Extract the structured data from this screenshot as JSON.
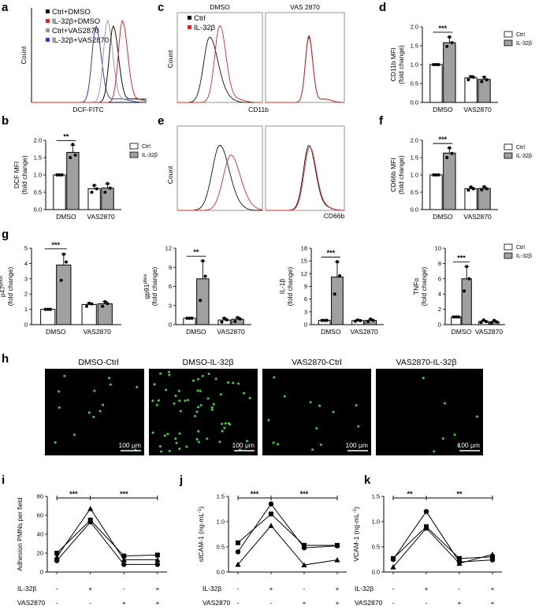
{
  "panels": {
    "a": "a",
    "b": "b",
    "c": "c",
    "d": "d",
    "e": "e",
    "f": "f",
    "g": "g",
    "h": "h",
    "i": "i",
    "j": "j",
    "k": "k"
  },
  "flow_a": {
    "xlabel": "DCF-FITC",
    "ylabel": "Count",
    "legend": [
      {
        "name": "Ctrl+DMSO",
        "color": "#111111"
      },
      {
        "name": "IL-32β+DMSO",
        "color": "#e02828"
      },
      {
        "name": "Ctrl+VAS2870",
        "color": "#9a9a9a"
      },
      {
        "name": "IL-32β+VAS2870",
        "color": "#2b3fc4"
      }
    ],
    "peaks": [
      {
        "name": "IL-32β+VAS2870",
        "center": 0.56,
        "color": "#2b3fc4"
      },
      {
        "name": "Ctrl+VAS2870",
        "center": 0.66,
        "color": "#9a9a9a"
      },
      {
        "name": "Ctrl+DMSO",
        "center": 0.71,
        "color": "#111111"
      },
      {
        "name": "IL-32β+DMSO",
        "center": 0.79,
        "color": "#e02828"
      }
    ]
  },
  "flow_c": {
    "titles": [
      "DMSO",
      "VAS 2870"
    ],
    "xlabel": "CD11b",
    "ylabel": "Count",
    "legend": [
      {
        "name": "Ctrl",
        "color": "#111111"
      },
      {
        "name": "IL-32β",
        "color": "#e02828"
      }
    ]
  },
  "flow_e": {
    "xlabel": "CD66b",
    "ylabel": "Count"
  },
  "micro_h": {
    "titles": [
      "DMSO-Ctrl",
      "DMSO-IL-32β",
      "VAS2870-Ctrl",
      "VAS2870-IL-32β"
    ],
    "scale_label": "100 μm",
    "cell_counts": [
      14,
      60,
      13,
      7
    ]
  },
  "x_axis_rows": {
    "il32_label": "IL-32β",
    "vas_label": "VAS2870",
    "il32_signs": [
      "-",
      "+",
      "-",
      "+"
    ],
    "vas_signs": [
      "-",
      "-",
      "+",
      "+"
    ]
  },
  "chart_data": [
    {
      "id": "d",
      "type": "bar",
      "categories": [
        "DMSO",
        "VAS2870"
      ],
      "series_names": [
        "Ctrl",
        "IL-32β"
      ],
      "values": [
        [
          1.0,
          1.58
        ],
        [
          0.65,
          0.61
        ]
      ],
      "errors": [
        [
          0.01,
          0.15
        ],
        [
          0.06,
          0.07
        ]
      ],
      "points": [
        [
          [
            1.0,
            1.0,
            1.0
          ],
          [
            1.48,
            1.73,
            1.58
          ]
        ],
        [
          [
            0.6,
            0.68,
            0.67
          ],
          [
            0.55,
            0.67,
            0.6
          ]
        ]
      ],
      "ylabel": [
        "CD11b MFI",
        "(fold change)"
      ],
      "ylim": [
        0,
        2
      ],
      "yticks": [
        "0.0",
        "0.5",
        "1.0",
        "1.5",
        "2.0"
      ],
      "sig": "***",
      "legend": true
    },
    {
      "id": "b",
      "type": "bar",
      "categories": [
        "DMSO",
        "VAS2870"
      ],
      "series_names": [
        "Ctrl",
        "IL-32β"
      ],
      "values": [
        [
          1.0,
          1.65
        ],
        [
          0.6,
          0.62
        ]
      ],
      "errors": [
        [
          0.01,
          0.2
        ],
        [
          0.1,
          0.12
        ]
      ],
      "points": [
        [
          [
            1.0,
            1.0,
            1.0
          ],
          [
            1.5,
            1.88,
            1.57
          ]
        ],
        [
          [
            0.5,
            0.7,
            0.6
          ],
          [
            0.5,
            0.75,
            0.62
          ]
        ]
      ],
      "ylabel": [
        "DCF MFI",
        "(fold change)"
      ],
      "ylim": [
        0,
        2
      ],
      "yticks": [
        "0.0",
        "0.5",
        "1.0",
        "1.5",
        "2.0"
      ],
      "sig": "**",
      "legend": true
    },
    {
      "id": "f",
      "type": "bar",
      "categories": [
        "DMSO",
        "VAS2870"
      ],
      "series_names": [
        "Ctrl",
        "IL-32β"
      ],
      "values": [
        [
          1.0,
          1.63
        ],
        [
          0.6,
          0.61
        ]
      ],
      "errors": [
        [
          0.01,
          0.14
        ],
        [
          0.05,
          0.05
        ]
      ],
      "points": [
        [
          [
            1.0,
            1.0,
            1.0
          ],
          [
            1.5,
            1.78,
            1.62
          ]
        ],
        [
          [
            0.56,
            0.65,
            0.6
          ],
          [
            0.57,
            0.66,
            0.6
          ]
        ]
      ],
      "ylabel": [
        "CD66b MFI",
        "(fold change)"
      ],
      "ylim": [
        0,
        2
      ],
      "yticks": [
        "0.0",
        "0.5",
        "1.0",
        "1.5",
        "2.0"
      ],
      "sig": "***",
      "legend": true
    },
    {
      "id": "g1",
      "type": "bar",
      "categories": [
        "DMSO",
        "VAS2870"
      ],
      "series_names": [
        "Ctrl",
        "IL-32β"
      ],
      "values": [
        [
          1.0,
          3.9
        ],
        [
          1.32,
          1.36
        ]
      ],
      "errors": [
        [
          0.03,
          0.75
        ],
        [
          0.1,
          0.15
        ]
      ],
      "points": [
        [
          [
            1.0,
            1.0,
            1.0
          ],
          [
            2.9,
            4.6,
            4.1
          ]
        ],
        [
          [
            1.2,
            1.4,
            1.35
          ],
          [
            1.2,
            1.5,
            1.38
          ]
        ]
      ],
      "ylabel": [
        "p47",
        "phox",
        "(fold change)"
      ],
      "ylim": [
        0,
        5
      ],
      "yticks": [
        "0",
        "1",
        "2",
        "3",
        "4",
        "5"
      ],
      "sig": "***",
      "legend": false
    },
    {
      "id": "g2",
      "type": "bar",
      "categories": [
        "DMSO",
        "VAS2870"
      ],
      "series_names": [
        "Ctrl",
        "IL-32β"
      ],
      "values": [
        [
          1.0,
          7.2
        ],
        [
          0.72,
          0.85
        ]
      ],
      "errors": [
        [
          0.05,
          2.8
        ],
        [
          0.3,
          0.3
        ]
      ],
      "points": [
        [
          [
            1.0,
            1.0,
            1.0
          ],
          [
            3.8,
            10.0,
            7.6
          ]
        ],
        [
          [
            0.4,
            1.0,
            0.75
          ],
          [
            0.5,
            1.1,
            0.9
          ]
        ]
      ],
      "ylabel": [
        "gp91",
        "phox",
        "(fold change)"
      ],
      "ylim": [
        0,
        12
      ],
      "yticks": [
        "0",
        "3",
        "6",
        "9",
        "12"
      ],
      "sig": "**",
      "legend": false
    },
    {
      "id": "g3",
      "type": "bar",
      "categories": [
        "DMSO",
        "VAS2870"
      ],
      "series_names": [
        "Ctrl",
        "IL-32β"
      ],
      "values": [
        [
          1.0,
          11.2
        ],
        [
          0.95,
          1.0
        ]
      ],
      "errors": [
        [
          0.05,
          3.6
        ],
        [
          0.2,
          0.3
        ]
      ],
      "points": [
        [
          [
            1.0,
            1.0,
            1.0
          ],
          [
            7.2,
            14.8,
            11.5
          ]
        ],
        [
          [
            0.8,
            1.1,
            0.95
          ],
          [
            0.7,
            1.3,
            1.0
          ]
        ]
      ],
      "ylabel": [
        "IL-1β",
        "",
        "(fold change)"
      ],
      "ylim": [
        0,
        18
      ],
      "yticks": [
        "0",
        "3",
        "6",
        "9",
        "12",
        "15",
        "18"
      ],
      "sig": "***",
      "legend": false
    },
    {
      "id": "g4",
      "type": "bar",
      "categories": [
        "DMSO",
        "VAS2870"
      ],
      "series_names": [
        "Ctrl",
        "IL-32β"
      ],
      "values": [
        [
          1.0,
          6.0
        ],
        [
          0.42,
          0.38
        ]
      ],
      "errors": [
        [
          0.03,
          1.6
        ],
        [
          0.15,
          0.15
        ]
      ],
      "points": [
        [
          [
            1.0,
            1.0,
            1.0
          ],
          [
            4.4,
            7.6,
            6.0
          ]
        ],
        [
          [
            0.3,
            0.6,
            0.4
          ],
          [
            0.25,
            0.55,
            0.35
          ]
        ]
      ],
      "ylabel": [
        "TNFα",
        "",
        "(fold change)"
      ],
      "ylim": [
        0,
        10
      ],
      "yticks": [
        "0",
        "2",
        "4",
        "6",
        "8",
        "10"
      ],
      "sig": "***",
      "legend": true
    },
    {
      "id": "i",
      "type": "line",
      "x": [
        "1",
        "2",
        "3",
        "4"
      ],
      "ylabel": [
        "Adhesion PMNs per field"
      ],
      "ylim": [
        0,
        80
      ],
      "yticks": [
        "0",
        "20",
        "40",
        "60",
        "80"
      ],
      "series": [
        {
          "marker": "square",
          "values": [
            20,
            55,
            17,
            18
          ]
        },
        {
          "marker": "circle",
          "values": [
            12,
            53,
            8,
            8
          ]
        },
        {
          "marker": "triangle",
          "values": [
            16,
            67,
            13,
            13
          ]
        }
      ],
      "sigs": [
        "***",
        "***"
      ]
    },
    {
      "id": "j",
      "type": "line",
      "x": [
        "1",
        "2",
        "3",
        "4"
      ],
      "ylabel": [
        "sICAM-1 (ng·mL",
        "-1",
        ")"
      ],
      "ylim": [
        0,
        1.5
      ],
      "yticks": [
        "0.0",
        "0.5",
        "1.0",
        "1.5"
      ],
      "series": [
        {
          "marker": "square",
          "values": [
            0.58,
            1.15,
            0.53,
            0.53
          ]
        },
        {
          "marker": "circle",
          "values": [
            0.4,
            1.35,
            0.48,
            0.52
          ]
        },
        {
          "marker": "triangle",
          "values": [
            0.15,
            0.92,
            0.14,
            0.24
          ]
        }
      ],
      "sigs": [
        "***",
        "***"
      ]
    },
    {
      "id": "k",
      "type": "line",
      "x": [
        "1",
        "2",
        "3",
        "4"
      ],
      "ylabel": [
        "VCAM-1 (ng·mL",
        "-1",
        ")"
      ],
      "ylim": [
        0,
        1.5
      ],
      "yticks": [
        "0.0",
        "0.5",
        "1.0",
        "1.5"
      ],
      "series": [
        {
          "marker": "square",
          "values": [
            0.27,
            0.9,
            0.27,
            0.3
          ]
        },
        {
          "marker": "circle",
          "values": [
            0.25,
            1.2,
            0.2,
            0.24
          ]
        },
        {
          "marker": "triangle",
          "values": [
            0.1,
            0.87,
            0.17,
            0.35
          ]
        }
      ],
      "sigs": [
        "**",
        "**"
      ]
    }
  ]
}
